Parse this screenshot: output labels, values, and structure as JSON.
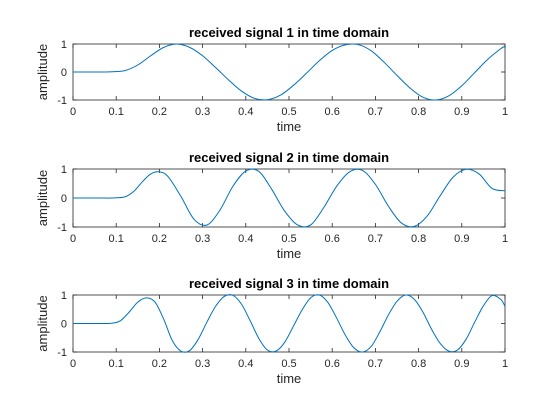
{
  "chart_data": [
    {
      "type": "line",
      "title": "received signal 1 in time domain",
      "xlabel": "time",
      "ylabel": "amplitude",
      "xlim": [
        0,
        1
      ],
      "ylim": [
        -1,
        1
      ],
      "xticks": [
        "0",
        "0.1",
        "0.2",
        "0.3",
        "0.4",
        "0.5",
        "0.6",
        "0.7",
        "0.8",
        "0.9",
        "1"
      ],
      "yticks": [
        "-1",
        "0",
        "1"
      ],
      "grid": false,
      "line_color": "#0072bd",
      "series": [
        {
          "x": [
            0,
            0.03,
            0.06,
            0.09,
            0.12,
            0.15,
            0.18,
            0.21,
            0.24,
            0.27,
            0.3,
            0.33,
            0.36,
            0.39,
            0.42,
            0.45,
            0.48,
            0.51,
            0.54,
            0.57,
            0.6,
            0.63,
            0.66,
            0.69,
            0.72,
            0.75,
            0.78,
            0.81,
            0.84,
            0.87,
            0.9,
            0.93,
            0.96,
            0.99,
            1.0
          ],
          "y": [
            0,
            0,
            0,
            0.01,
            0.05,
            0.25,
            0.58,
            0.88,
            1.0,
            0.88,
            0.58,
            0.16,
            -0.28,
            -0.68,
            -0.94,
            -0.99,
            -0.83,
            -0.48,
            -0.05,
            0.4,
            0.77,
            0.97,
            0.98,
            0.76,
            0.35,
            -0.12,
            -0.57,
            -0.9,
            -1.0,
            -0.85,
            -0.49,
            -0.02,
            0.45,
            0.83,
            0.92
          ]
        }
      ]
    },
    {
      "type": "line",
      "title": "received signal 2 in time domain",
      "xlabel": "time",
      "ylabel": "amplitude",
      "xlim": [
        0,
        1
      ],
      "ylim": [
        -1,
        1
      ],
      "xticks": [
        "0",
        "0.1",
        "0.2",
        "0.3",
        "0.4",
        "0.5",
        "0.6",
        "0.7",
        "0.8",
        "0.9",
        "1"
      ],
      "yticks": [
        "-1",
        "0",
        "1"
      ],
      "grid": false,
      "line_color": "#0072bd",
      "series": [
        {
          "x": [
            0,
            0.03,
            0.06,
            0.09,
            0.12,
            0.14,
            0.16,
            0.18,
            0.2,
            0.22,
            0.25,
            0.28,
            0.31,
            0.34,
            0.37,
            0.4,
            0.43,
            0.46,
            0.49,
            0.52,
            0.55,
            0.58,
            0.61,
            0.64,
            0.67,
            0.7,
            0.73,
            0.76,
            0.79,
            0.82,
            0.85,
            0.88,
            0.91,
            0.94,
            0.97,
            1.0
          ],
          "y": [
            0,
            0,
            0,
            0,
            0.04,
            0.22,
            0.55,
            0.83,
            0.9,
            0.74,
            0.05,
            -0.73,
            -0.93,
            -0.42,
            0.4,
            0.93,
            0.92,
            0.3,
            -0.45,
            -0.93,
            -0.93,
            -0.34,
            0.4,
            0.9,
            0.95,
            0.47,
            -0.28,
            -0.86,
            -0.98,
            -0.62,
            0.08,
            0.72,
            0.99,
            0.83,
            0.33,
            0.25
          ]
        }
      ]
    },
    {
      "type": "line",
      "title": "received signal 3 in time domain",
      "xlabel": "time",
      "ylabel": "amplitude",
      "xlim": [
        0,
        1
      ],
      "ylim": [
        -1,
        1
      ],
      "xticks": [
        "0",
        "0.1",
        "0.2",
        "0.3",
        "0.4",
        "0.5",
        "0.6",
        "0.7",
        "0.8",
        "0.9",
        "1"
      ],
      "yticks": [
        "-1",
        "0",
        "1"
      ],
      "grid": false,
      "line_color": "#0072bd",
      "series": [
        {
          "x": [
            0,
            0.03,
            0.06,
            0.09,
            0.11,
            0.13,
            0.15,
            0.17,
            0.19,
            0.21,
            0.23,
            0.25,
            0.27,
            0.29,
            0.31,
            0.33,
            0.35,
            0.37,
            0.39,
            0.41,
            0.43,
            0.45,
            0.47,
            0.49,
            0.51,
            0.53,
            0.55,
            0.57,
            0.59,
            0.61,
            0.63,
            0.65,
            0.67,
            0.69,
            0.71,
            0.73,
            0.75,
            0.77,
            0.79,
            0.81,
            0.83,
            0.85,
            0.87,
            0.89,
            0.91,
            0.93,
            0.95,
            0.97,
            0.99,
            1.0
          ],
          "y": [
            0,
            0,
            0,
            0.01,
            0.1,
            0.4,
            0.75,
            0.9,
            0.75,
            0.15,
            -0.6,
            -0.97,
            -0.95,
            -0.55,
            0.05,
            0.6,
            0.95,
            0.99,
            0.68,
            0.1,
            -0.52,
            -0.93,
            -0.97,
            -0.66,
            -0.1,
            0.47,
            0.9,
            1.0,
            0.74,
            0.2,
            -0.4,
            -0.85,
            -1.0,
            -0.81,
            -0.3,
            0.3,
            0.78,
            1.0,
            0.85,
            0.4,
            -0.2,
            -0.7,
            -0.97,
            -0.93,
            -0.55,
            0.05,
            0.62,
            0.98,
            0.85,
            0.6
          ]
        }
      ]
    }
  ]
}
